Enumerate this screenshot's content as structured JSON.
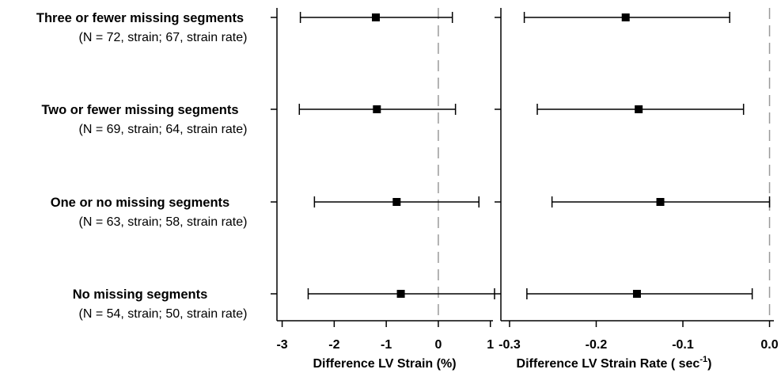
{
  "colors": {
    "ink": "#000000",
    "reference_line": "#9a9a9a"
  },
  "chart_data": [
    {
      "type": "scatter",
      "subtype": "forest-plot",
      "title": "",
      "xlabel": "Difference LV Strain (%)",
      "ylabel": "",
      "xlim": [
        -3.1,
        1.05
      ],
      "xticks": [
        -3,
        -2,
        -1,
        0,
        1
      ],
      "xtick_labels": [
        "-3",
        "-2",
        "-1",
        "0",
        "1"
      ],
      "reference_line": 0,
      "grid": false,
      "categories": [
        {
          "title": "Three or fewer missing segments",
          "subtitle": "(N = 72, strain; 67, strain rate)"
        },
        {
          "title": "Two or fewer missing segments",
          "subtitle": "(N = 69, strain; 64, strain rate)"
        },
        {
          "title": "One or no missing segments",
          "subtitle": "(N = 63, strain; 58, strain rate)"
        },
        {
          "title": "No missing segments",
          "subtitle": "(N = 54, strain; 50, strain rate)"
        }
      ],
      "estimates": [
        -1.2,
        -1.18,
        -0.8,
        -0.72
      ],
      "ci_low": [
        -2.65,
        -2.67,
        -2.38,
        -2.5
      ],
      "ci_high": [
        0.27,
        0.33,
        0.78,
        1.08
      ]
    },
    {
      "type": "scatter",
      "subtype": "forest-plot",
      "title": "",
      "xlabel_main": "Difference LV Strain Rate ( sec",
      "xlabel_sup": "-1",
      "xlabel_end": ")",
      "ylabel": "",
      "xlim": [
        -0.31,
        0.005
      ],
      "xticks": [
        -0.3,
        -0.2,
        -0.1,
        0.0
      ],
      "xtick_labels": [
        "-0.3",
        "-0.2",
        "-0.1",
        "0.0"
      ],
      "reference_line": 0,
      "grid": false,
      "estimates": [
        -0.166,
        -0.151,
        -0.126,
        -0.153
      ],
      "ci_low": [
        -0.283,
        -0.268,
        -0.251,
        -0.28
      ],
      "ci_high": [
        -0.046,
        -0.03,
        0.0,
        -0.02
      ]
    }
  ]
}
